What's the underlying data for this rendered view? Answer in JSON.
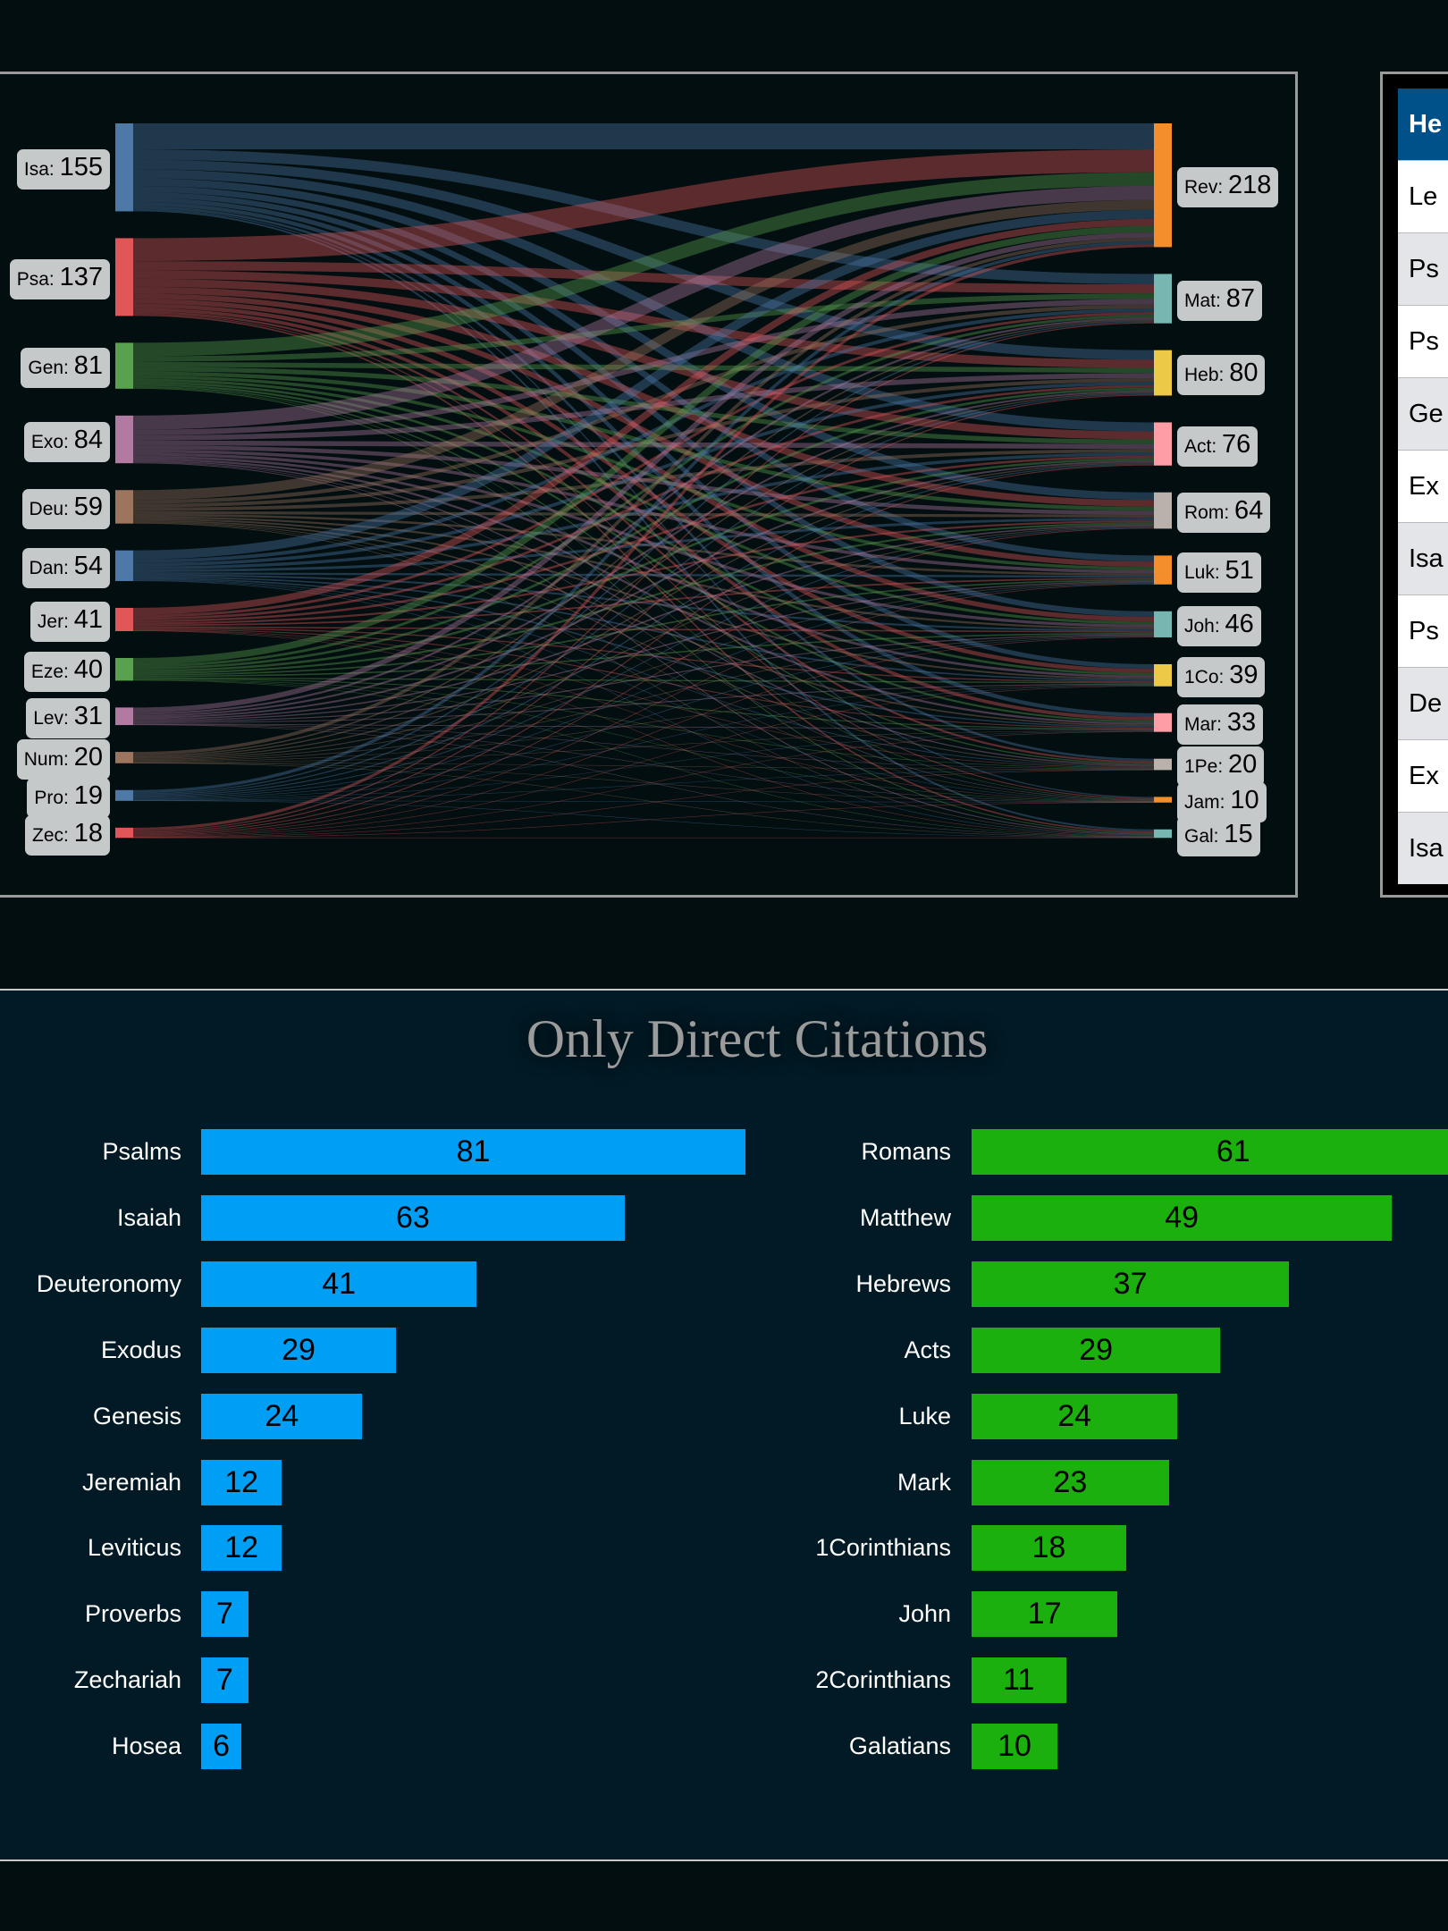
{
  "sankey": {
    "sources": [
      {
        "label": "Isa",
        "value": 155,
        "color": "#4e79a7"
      },
      {
        "label": "Psa",
        "value": 137,
        "color": "#e15759"
      },
      {
        "label": "Gen",
        "value": 81,
        "color": "#59a14f"
      },
      {
        "label": "Exo",
        "value": 84,
        "color": "#b07aa1"
      },
      {
        "label": "Deu",
        "value": 59,
        "color": "#9c755f"
      },
      {
        "label": "Dan",
        "value": 54,
        "color": "#4e79a7"
      },
      {
        "label": "Jer",
        "value": 41,
        "color": "#e15759"
      },
      {
        "label": "Eze",
        "value": 40,
        "color": "#59a14f"
      },
      {
        "label": "Lev",
        "value": 31,
        "color": "#b07aa1"
      },
      {
        "label": "Num",
        "value": 20,
        "color": "#9c755f"
      },
      {
        "label": "Pro",
        "value": 19,
        "color": "#4e79a7"
      },
      {
        "label": "Zec",
        "value": 18,
        "color": "#e15759"
      }
    ],
    "targets": [
      {
        "label": "Rev",
        "value": 218,
        "color": "#f28e2b"
      },
      {
        "label": "Mat",
        "value": 87,
        "color": "#76b7b2"
      },
      {
        "label": "Heb",
        "value": 80,
        "color": "#edc948"
      },
      {
        "label": "Act",
        "value": 76,
        "color": "#ff9da7"
      },
      {
        "label": "Rom",
        "value": 64,
        "color": "#bab0ac"
      },
      {
        "label": "Luk",
        "value": 51,
        "color": "#f28e2b"
      },
      {
        "label": "Joh",
        "value": 46,
        "color": "#76b7b2"
      },
      {
        "label": "1Co",
        "value": 39,
        "color": "#edc948"
      },
      {
        "label": "Mar",
        "value": 33,
        "color": "#ff9da7"
      },
      {
        "label": "1Pe",
        "value": 20,
        "color": "#bab0ac"
      },
      {
        "label": "Jam",
        "value": 10,
        "color": "#f28e2b"
      },
      {
        "label": "Gal",
        "value": 15,
        "color": "#76b7b2"
      }
    ]
  },
  "table": {
    "header": "He",
    "rows": [
      "Le",
      "Ps",
      "Ps",
      "Ge",
      "Ex",
      "Isa",
      "Ps",
      "De",
      "Ex",
      "Isa"
    ]
  },
  "chart_data": [
    {
      "type": "bar",
      "title": "Only Direct Citations",
      "orientation": "horizontal",
      "color": "#009ff6",
      "categories": [
        "Psalms",
        "Isaiah",
        "Deuteronomy",
        "Exodus",
        "Genesis",
        "Jeremiah",
        "Leviticus",
        "Proverbs",
        "Zechariah",
        "Hosea"
      ],
      "values": [
        81,
        63,
        41,
        29,
        24,
        12,
        12,
        7,
        7,
        6
      ]
    },
    {
      "type": "bar",
      "orientation": "horizontal",
      "color": "#1bb00e",
      "categories": [
        "Romans",
        "Matthew",
        "Hebrews",
        "Acts",
        "Luke",
        "Mark",
        "1Corinthians",
        "John",
        "2Corinthians",
        "Galatians"
      ],
      "values": [
        61,
        49,
        37,
        29,
        24,
        23,
        18,
        17,
        11,
        10
      ]
    }
  ]
}
